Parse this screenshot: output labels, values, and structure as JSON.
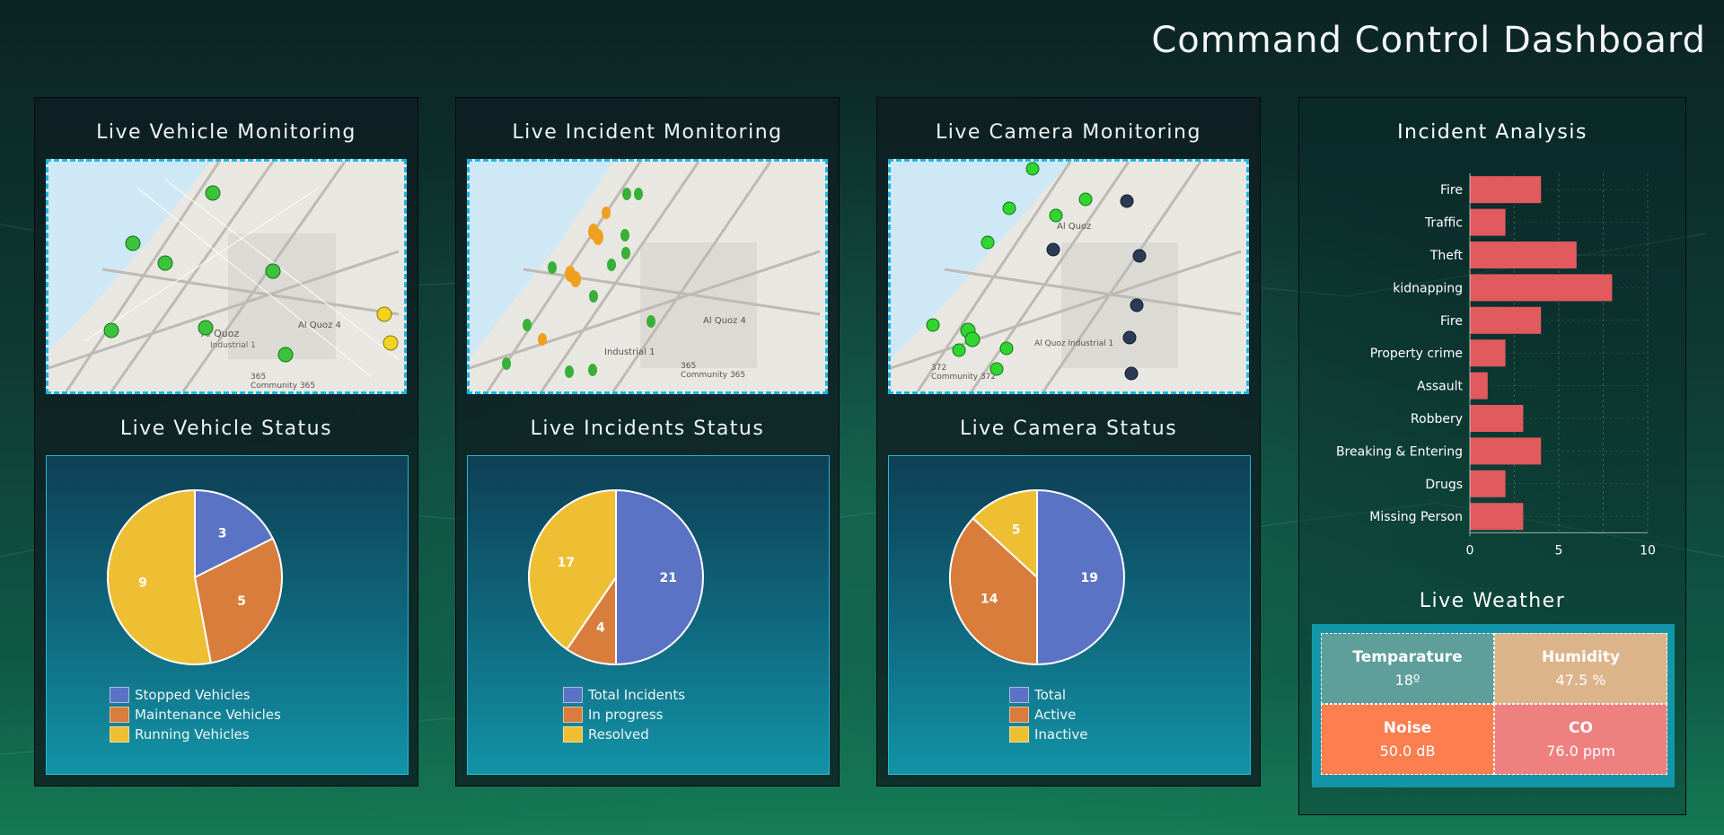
{
  "page": {
    "title": "Command Control Dashboard"
  },
  "panels": [
    {
      "monitor_title": "Live Vehicle Monitoring",
      "status_title": "Live Vehicle Status",
      "pie": {
        "values": [
          3,
          5,
          9
        ],
        "labels": [
          "Stopped Vehicles",
          "Maintenance Vehicles",
          "Running Vehicles"
        ],
        "colors": [
          "#5b73c5",
          "#d87d3b",
          "#eebf33"
        ]
      },
      "map_labels": [
        "Al Quoz",
        "Industrial 1",
        "Al Quoz 4",
        "365",
        "Community 365"
      ]
    },
    {
      "monitor_title": "Live Incident Monitoring",
      "status_title": "Live Incidents Status",
      "pie": {
        "values": [
          21,
          4,
          17
        ],
        "labels": [
          "Total Incidents",
          "In progress",
          "Resolved"
        ],
        "colors": [
          "#5b73c5",
          "#d87d3b",
          "#eebf33"
        ]
      },
      "map_labels": [
        "Al Quoz 4",
        "Industrial 1",
        "365",
        "Community 365"
      ]
    },
    {
      "monitor_title": "Live Camera Monitoring",
      "status_title": "Live Camera Status",
      "pie": {
        "values": [
          19,
          14,
          5
        ],
        "labels": [
          "Total",
          "Active",
          "Inactive"
        ],
        "colors": [
          "#5b73c5",
          "#d87d3b",
          "#eebf33"
        ]
      },
      "map_labels": [
        "Al Quoz",
        "Al Quoz Industrial 1",
        "372",
        "Community 372"
      ]
    }
  ],
  "analysis": {
    "title": "Incident Analysis",
    "weather_title": "Live Weather",
    "weather": [
      {
        "label": "Temparature",
        "value": "18º",
        "color": "#5e9f9b"
      },
      {
        "label": "Humidity",
        "value": "47.5 %",
        "color": "#dbb48a"
      },
      {
        "label": "Noise",
        "value": "50.0 dB",
        "color": "#fd7e4f"
      },
      {
        "label": "CO",
        "value": "76.0 ppm",
        "color": "#ef8080"
      }
    ]
  },
  "chart_data": {
    "type": "bar",
    "orientation": "horizontal",
    "categories": [
      "Fire",
      "Traffic",
      "Theft",
      "kidnapping",
      "Fire",
      "Property crime",
      "Assault",
      "Robbery",
      "Breaking & Entering",
      "Drugs",
      "Missing Person"
    ],
    "values": [
      4,
      2,
      6,
      8,
      4,
      2,
      1,
      3,
      4,
      2,
      3
    ],
    "xlim": [
      0,
      10
    ],
    "xticks": [
      "0",
      "5",
      "10"
    ],
    "bar_color": "#e05a5e",
    "grid": true
  }
}
